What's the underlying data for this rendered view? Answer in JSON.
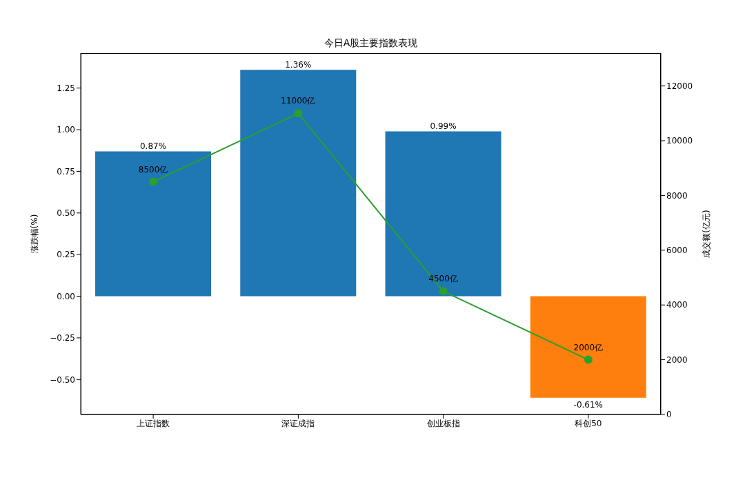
{
  "chart_data": {
    "type": "bar",
    "title": "今日A股主要指数表现",
    "ylabel": "涨跌幅(%)",
    "y2label": "成交额(亿元)",
    "categories": [
      "上证指数",
      "深证成指",
      "创业板指",
      "科创50"
    ],
    "series": [
      {
        "colors": [
          "#1f77b4",
          "#1f77b4",
          "#1f77b4",
          "#ff7f0e"
        ],
        "values": [
          0.87,
          1.36,
          0.99,
          -0.61
        ],
        "value_labels": [
          "0.87%",
          "1.36%",
          "0.99%",
          "-0.61%"
        ]
      },
      {
        "type": "line",
        "axis": "y2",
        "color": "#2ca02c",
        "marker": "circle",
        "values": [
          8500,
          11000,
          4500,
          2000
        ],
        "value_labels": [
          "8500亿",
          "11000亿",
          "4500亿",
          "2000亿"
        ]
      }
    ],
    "ylim": [
      -0.71,
      1.46
    ],
    "yticks": [
      {
        "value": -0.5,
        "label": "−0.50"
      },
      {
        "value": -0.25,
        "label": "−0.25"
      },
      {
        "value": 0,
        "label": "0.00"
      },
      {
        "value": 0.25,
        "label": "0.25"
      },
      {
        "value": 0.5,
        "label": "0.50"
      },
      {
        "value": 0.75,
        "label": "0.75"
      },
      {
        "value": 1,
        "label": "1.00"
      },
      {
        "value": 1.25,
        "label": "1.25"
      }
    ],
    "y2lim": [
      0,
      13200
    ],
    "y2ticks": [
      0,
      2000,
      4000,
      6000,
      8000,
      10000,
      12000
    ],
    "grid": false,
    "legend": false
  }
}
